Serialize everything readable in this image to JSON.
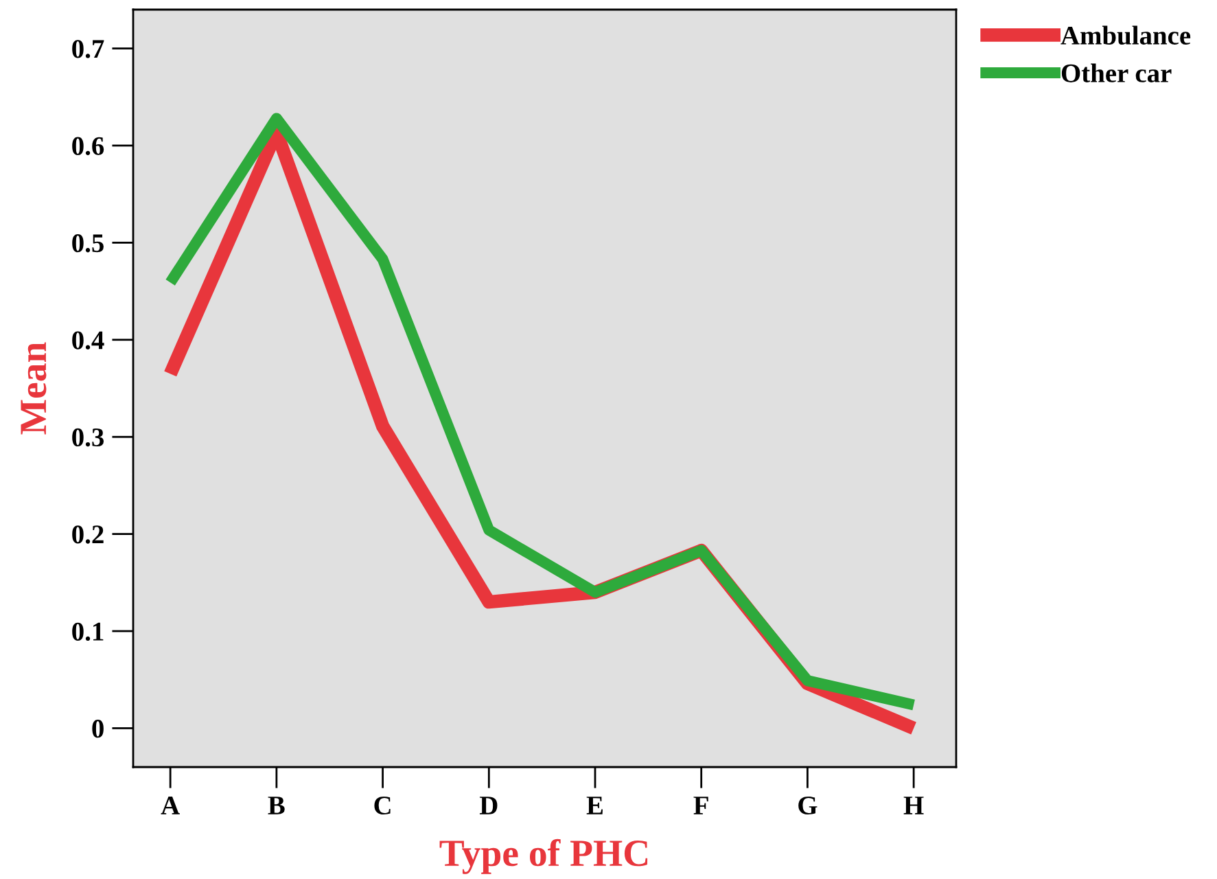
{
  "chart_data": {
    "type": "line",
    "xlabel": "Type of PHC",
    "ylabel": "Mean",
    "categories": [
      "A",
      "B",
      "C",
      "D",
      "E",
      "F",
      "G",
      "H"
    ],
    "series": [
      {
        "name": "Ambulance",
        "color": "#e8363c",
        "values": [
          0.365,
          0.614,
          0.311,
          0.13,
          0.14,
          0.183,
          0.046,
          0.0
        ]
      },
      {
        "name": "Other car",
        "color": "#2eaa3c",
        "values": [
          0.459,
          0.628,
          0.483,
          0.204,
          0.14,
          0.183,
          0.049,
          0.024
        ]
      }
    ],
    "ylim": [
      -0.04,
      0.74
    ],
    "yticks": [
      0,
      0.1,
      0.2,
      0.3,
      0.4,
      0.5,
      0.6,
      0.7
    ],
    "grid": false,
    "legend": "top right",
    "marker": "none",
    "line_style": "solid"
  }
}
